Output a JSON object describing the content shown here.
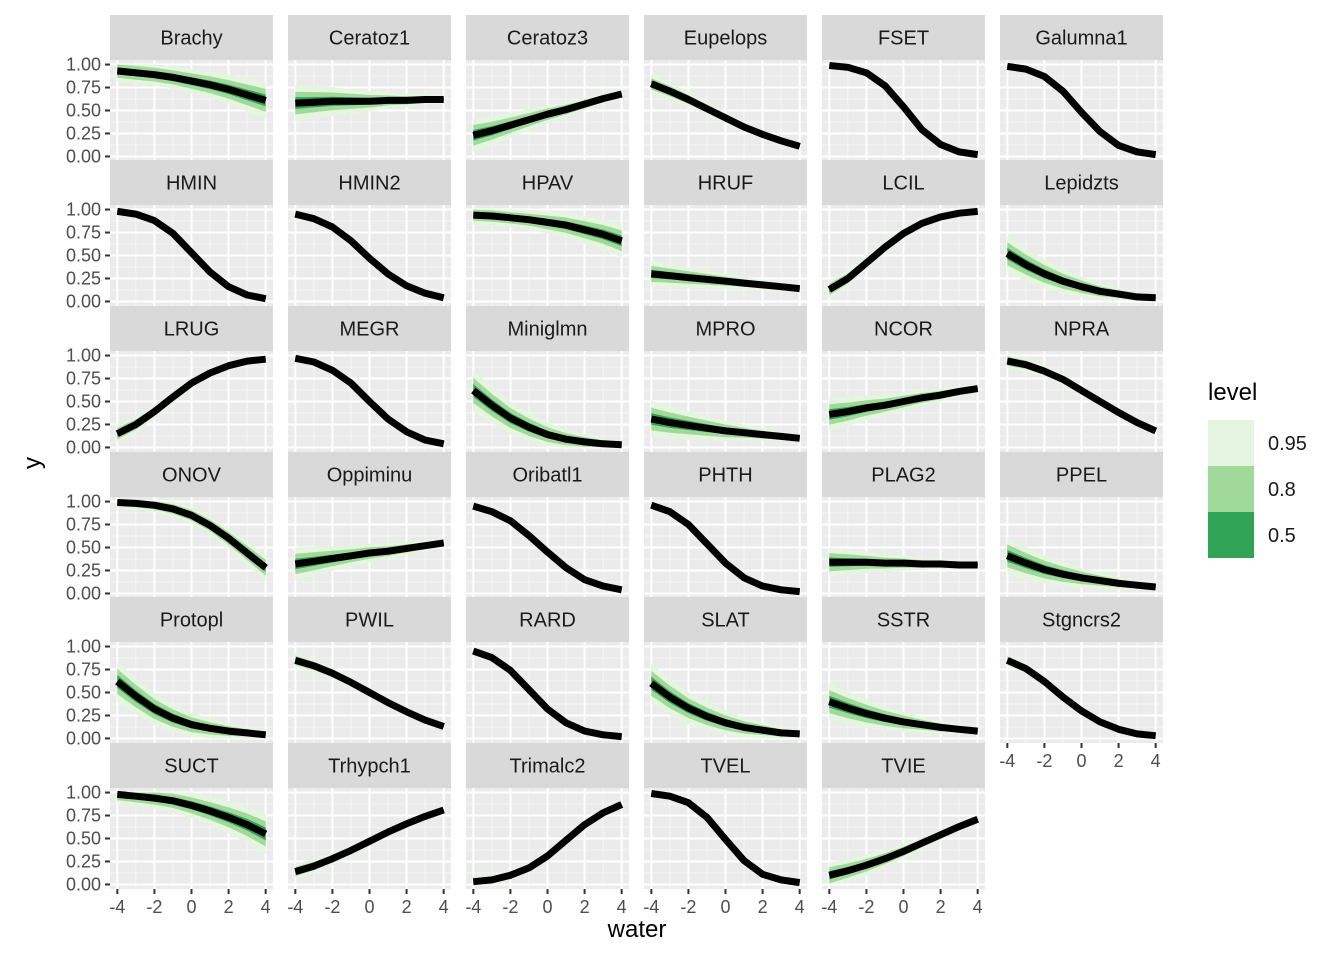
{
  "chart_data": {
    "type": "line",
    "xlabel": "water",
    "ylabel": "y",
    "xlim": [
      -4,
      4
    ],
    "ylim": [
      0,
      1
    ],
    "x_ticks": [
      -4,
      -2,
      0,
      2,
      4
    ],
    "y_ticks": [
      0,
      0.25,
      0.5,
      0.75,
      1
    ],
    "x_tick_labels": [
      "-4",
      "-2",
      "0",
      "2",
      "4"
    ],
    "y_tick_labels": [
      "0.00",
      "0.25",
      "0.50",
      "0.75",
      "1.00"
    ],
    "grid": true,
    "legend": {
      "title": "level",
      "position": "right",
      "entries": [
        {
          "label": "0.95",
          "color": "#e5f5e0"
        },
        {
          "label": "0.8",
          "color": "#a1d99b"
        },
        {
          "label": "0.5",
          "color": "#31a354"
        }
      ]
    },
    "x": [
      -4,
      -3,
      -2,
      -1,
      0,
      1,
      2,
      3,
      4
    ],
    "panels": [
      {
        "name": "Brachy",
        "values": [
          0.93,
          0.91,
          0.89,
          0.86,
          0.82,
          0.78,
          0.73,
          0.67,
          0.61
        ],
        "band": [
          0.12,
          0.12,
          0.15,
          0.2
        ]
      },
      {
        "name": "Ceratoz1",
        "values": [
          0.58,
          0.59,
          0.6,
          0.6,
          0.6,
          0.61,
          0.61,
          0.62,
          0.62
        ],
        "band": [
          0.2,
          0.14,
          0.08,
          0.04
        ]
      },
      {
        "name": "Ceratoz3",
        "values": [
          0.23,
          0.28,
          0.34,
          0.4,
          0.46,
          0.51,
          0.57,
          0.63,
          0.68
        ],
        "band": [
          0.18,
          0.12,
          0.08,
          0.04
        ]
      },
      {
        "name": "Eupelops",
        "values": [
          0.79,
          0.71,
          0.62,
          0.52,
          0.42,
          0.32,
          0.24,
          0.17,
          0.11
        ],
        "band": [
          0.1,
          0.07,
          0.04,
          0.02
        ]
      },
      {
        "name": "FSET",
        "values": [
          0.99,
          0.97,
          0.91,
          0.77,
          0.54,
          0.29,
          0.13,
          0.05,
          0.02
        ],
        "band": [
          0.02,
          0.015,
          0.01,
          0.005
        ]
      },
      {
        "name": "Galumna1",
        "values": [
          0.98,
          0.95,
          0.87,
          0.71,
          0.48,
          0.27,
          0.12,
          0.05,
          0.02
        ],
        "band": [
          0.04,
          0.03,
          0.02,
          0.01
        ]
      },
      {
        "name": "HMIN",
        "values": [
          0.98,
          0.95,
          0.88,
          0.74,
          0.53,
          0.32,
          0.16,
          0.07,
          0.03
        ],
        "band": [
          0.03,
          0.02,
          0.015,
          0.01
        ]
      },
      {
        "name": "HMIN2",
        "values": [
          0.95,
          0.9,
          0.81,
          0.66,
          0.47,
          0.3,
          0.17,
          0.09,
          0.04
        ],
        "band": [
          0.05,
          0.04,
          0.025,
          0.01
        ]
      },
      {
        "name": "HPAV",
        "values": [
          0.94,
          0.93,
          0.91,
          0.89,
          0.86,
          0.83,
          0.78,
          0.73,
          0.66
        ],
        "band": [
          0.1,
          0.1,
          0.14,
          0.18
        ]
      },
      {
        "name": "HRUF",
        "values": [
          0.3,
          0.28,
          0.26,
          0.24,
          0.22,
          0.2,
          0.18,
          0.16,
          0.14
        ],
        "band": [
          0.14,
          0.1,
          0.06,
          0.03
        ]
      },
      {
        "name": "LCIL",
        "values": [
          0.13,
          0.25,
          0.42,
          0.59,
          0.74,
          0.85,
          0.92,
          0.96,
          0.98
        ],
        "band": [
          0.1,
          0.07,
          0.04,
          0.02
        ]
      },
      {
        "name": "Lepidzts",
        "values": [
          0.52,
          0.4,
          0.3,
          0.22,
          0.16,
          0.11,
          0.08,
          0.05,
          0.04
        ],
        "band": [
          0.2,
          0.14,
          0.08,
          0.03
        ]
      },
      {
        "name": "LRUG",
        "values": [
          0.15,
          0.25,
          0.39,
          0.55,
          0.7,
          0.81,
          0.89,
          0.94,
          0.96
        ],
        "band": [
          0.1,
          0.07,
          0.04,
          0.02
        ]
      },
      {
        "name": "MEGR",
        "values": [
          0.97,
          0.93,
          0.84,
          0.7,
          0.5,
          0.31,
          0.17,
          0.08,
          0.04
        ],
        "band": [
          0.04,
          0.03,
          0.02,
          0.01
        ]
      },
      {
        "name": "Miniglmn",
        "values": [
          0.62,
          0.46,
          0.32,
          0.22,
          0.14,
          0.09,
          0.06,
          0.04,
          0.03
        ],
        "band": [
          0.22,
          0.16,
          0.1,
          0.04
        ]
      },
      {
        "name": "MPRO",
        "values": [
          0.31,
          0.27,
          0.24,
          0.21,
          0.18,
          0.16,
          0.14,
          0.12,
          0.1
        ],
        "band": [
          0.2,
          0.14,
          0.08,
          0.03
        ]
      },
      {
        "name": "NCOR",
        "values": [
          0.36,
          0.39,
          0.43,
          0.46,
          0.5,
          0.54,
          0.57,
          0.61,
          0.64
        ],
        "band": [
          0.18,
          0.12,
          0.08,
          0.04
        ]
      },
      {
        "name": "NPRA",
        "values": [
          0.94,
          0.9,
          0.83,
          0.74,
          0.62,
          0.5,
          0.38,
          0.27,
          0.18
        ],
        "band": [
          0.08,
          0.06,
          0.04,
          0.02
        ]
      },
      {
        "name": "ONOV",
        "values": [
          0.99,
          0.98,
          0.96,
          0.92,
          0.85,
          0.74,
          0.6,
          0.44,
          0.28
        ],
        "band": [
          0.06,
          0.08,
          0.1,
          0.14
        ]
      },
      {
        "name": "Oppiminu",
        "values": [
          0.32,
          0.35,
          0.38,
          0.41,
          0.44,
          0.46,
          0.49,
          0.52,
          0.55
        ],
        "band": [
          0.18,
          0.12,
          0.08,
          0.04
        ]
      },
      {
        "name": "Oribatl1",
        "values": [
          0.95,
          0.89,
          0.79,
          0.63,
          0.45,
          0.28,
          0.15,
          0.08,
          0.04
        ],
        "band": [
          0.05,
          0.04,
          0.025,
          0.01
        ]
      },
      {
        "name": "PHTH",
        "values": [
          0.96,
          0.89,
          0.75,
          0.54,
          0.33,
          0.17,
          0.08,
          0.04,
          0.02
        ],
        "band": [
          0.04,
          0.03,
          0.02,
          0.01
        ]
      },
      {
        "name": "PLAG2",
        "values": [
          0.34,
          0.34,
          0.34,
          0.33,
          0.33,
          0.32,
          0.32,
          0.31,
          0.31
        ],
        "band": [
          0.16,
          0.1,
          0.06,
          0.02
        ]
      },
      {
        "name": "PPEL",
        "values": [
          0.41,
          0.33,
          0.26,
          0.21,
          0.17,
          0.14,
          0.11,
          0.09,
          0.07
        ],
        "band": [
          0.2,
          0.14,
          0.08,
          0.03
        ]
      },
      {
        "name": "Protopl",
        "values": [
          0.62,
          0.46,
          0.32,
          0.22,
          0.15,
          0.11,
          0.08,
          0.06,
          0.04
        ],
        "band": [
          0.22,
          0.16,
          0.1,
          0.04
        ]
      },
      {
        "name": "PWIL",
        "values": [
          0.85,
          0.79,
          0.71,
          0.61,
          0.5,
          0.39,
          0.29,
          0.2,
          0.13
        ],
        "band": [
          0.08,
          0.06,
          0.04,
          0.02
        ]
      },
      {
        "name": "RARD",
        "values": [
          0.95,
          0.88,
          0.74,
          0.53,
          0.32,
          0.17,
          0.08,
          0.04,
          0.02
        ],
        "band": [
          0.04,
          0.03,
          0.02,
          0.01
        ]
      },
      {
        "name": "SLAT",
        "values": [
          0.6,
          0.45,
          0.33,
          0.24,
          0.17,
          0.12,
          0.09,
          0.06,
          0.05
        ],
        "band": [
          0.22,
          0.16,
          0.1,
          0.04
        ]
      },
      {
        "name": "SSTR",
        "values": [
          0.4,
          0.33,
          0.27,
          0.22,
          0.18,
          0.15,
          0.12,
          0.1,
          0.08
        ],
        "band": [
          0.2,
          0.14,
          0.08,
          0.03
        ]
      },
      {
        "name": "Stgncrs2",
        "values": [
          0.85,
          0.76,
          0.62,
          0.45,
          0.3,
          0.18,
          0.1,
          0.05,
          0.03
        ],
        "band": [
          0.06,
          0.045,
          0.03,
          0.01
        ]
      },
      {
        "name": "SUCT",
        "values": [
          0.98,
          0.96,
          0.94,
          0.91,
          0.86,
          0.8,
          0.73,
          0.65,
          0.55
        ],
        "band": [
          0.1,
          0.12,
          0.16,
          0.22
        ]
      },
      {
        "name": "Trhypch1",
        "values": [
          0.14,
          0.2,
          0.28,
          0.37,
          0.47,
          0.57,
          0.66,
          0.74,
          0.81
        ],
        "band": [
          0.08,
          0.06,
          0.04,
          0.02
        ]
      },
      {
        "name": "Trimalc2",
        "values": [
          0.03,
          0.05,
          0.1,
          0.18,
          0.31,
          0.48,
          0.65,
          0.78,
          0.87
        ],
        "band": [
          0.06,
          0.045,
          0.03,
          0.01
        ]
      },
      {
        "name": "TVEL",
        "values": [
          0.99,
          0.96,
          0.89,
          0.73,
          0.49,
          0.26,
          0.11,
          0.05,
          0.02
        ],
        "band": [
          0.02,
          0.015,
          0.01,
          0.005
        ]
      },
      {
        "name": "TVIE",
        "values": [
          0.1,
          0.15,
          0.21,
          0.28,
          0.36,
          0.45,
          0.54,
          0.63,
          0.71
        ],
        "band": [
          0.14,
          0.1,
          0.06,
          0.03
        ]
      }
    ]
  }
}
